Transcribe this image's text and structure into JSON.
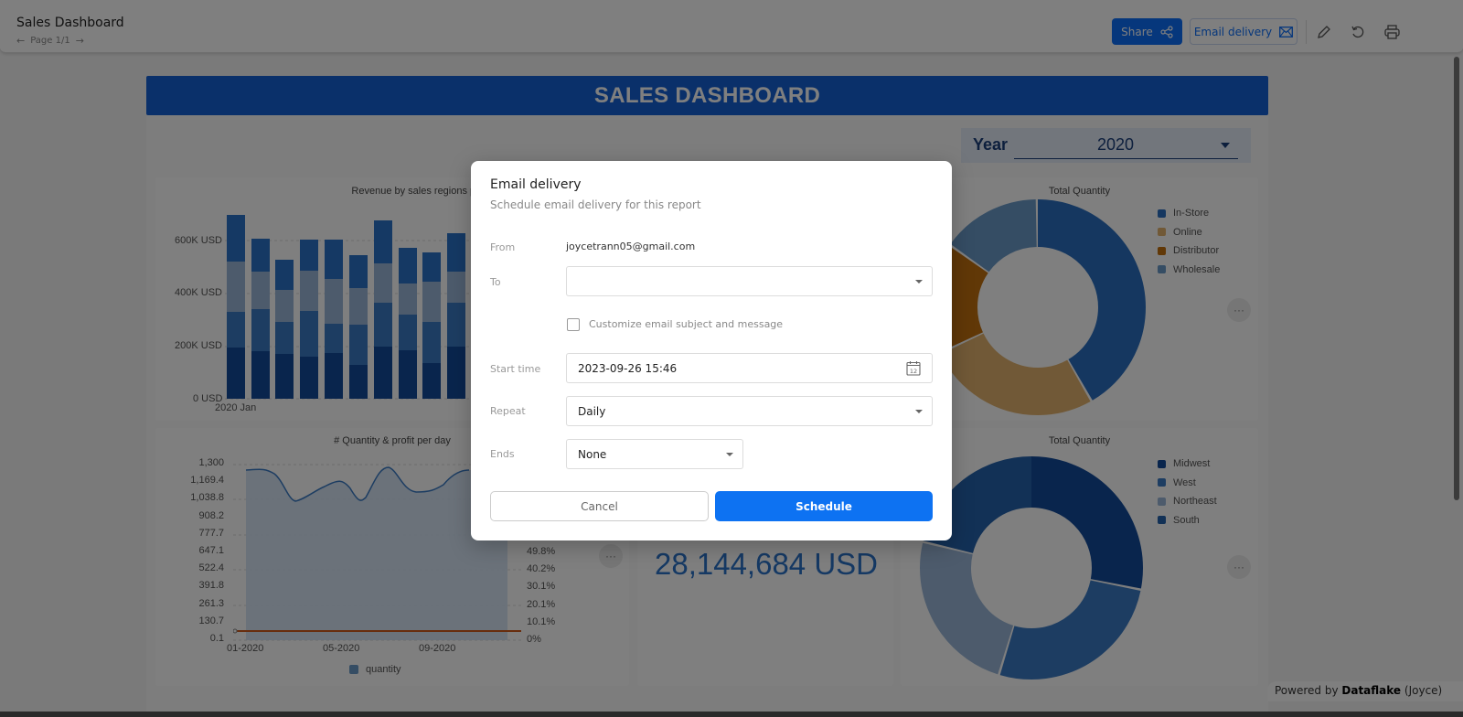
{
  "topbar": {
    "title": "Sales Dashboard",
    "page_indicator": "Page 1/1",
    "share_label": "Share",
    "email_delivery_label": "Email delivery",
    "icons": [
      "share-icon",
      "mail-icon",
      "pencil-icon",
      "undo-icon",
      "printer-icon"
    ]
  },
  "dashboard": {
    "banner_title": "SALES DASHBOARD",
    "year_filter": {
      "label": "Year",
      "value": "2020"
    },
    "revenue_chart": {
      "title": "Revenue by sales regions per month",
      "y_ticks": [
        "600K USD",
        "400K USD",
        "200K USD",
        "0 USD"
      ],
      "x_first_label": "2020 Jan"
    },
    "quantity_chart": {
      "title": "# Quantity & profit per day",
      "y_left_ticks": [
        "1,300",
        "1,169.4",
        "1,038.8",
        "908.2",
        "777.7",
        "647.1",
        "522.4",
        "391.8",
        "261.3",
        "130.7",
        "0.1"
      ],
      "y_right_ticks": [
        "49.8%",
        "40.2%",
        "30.1%",
        "20.1%",
        "10.1%",
        "0%"
      ],
      "x_ticks": [
        "01-2020",
        "05-2020",
        "09-2020"
      ],
      "legend": "quantity"
    },
    "kpi": {
      "value": "28,144,684 USD"
    },
    "channel_donut": {
      "title": "Total Quantity",
      "legend": [
        {
          "label": "In-Store",
          "color": "#2a6fc0"
        },
        {
          "label": "Online",
          "color": "#e3b36e"
        },
        {
          "label": "Distributor",
          "color": "#c2700f"
        },
        {
          "label": "Wholesale",
          "color": "#6b9ac9"
        }
      ]
    },
    "region_donut": {
      "title": "Total Quantity",
      "legend": [
        {
          "label": "Midwest",
          "color": "#124a9a"
        },
        {
          "label": "West",
          "color": "#3a7ac4"
        },
        {
          "label": "Northeast",
          "color": "#9ab7d9"
        },
        {
          "label": "South",
          "color": "#2563ad"
        }
      ]
    },
    "more_label": "···"
  },
  "dialog": {
    "title": "Email delivery",
    "subtitle": "Schedule email delivery for this report",
    "from_label": "From",
    "from_value": "joycetrann05@gmail.com",
    "to_label": "To",
    "to_value": "",
    "customize_label": "Customize email subject and message",
    "customize_checked": false,
    "start_time_label": "Start time",
    "start_time_value": "2023-09-26 15:46",
    "calendar_day": "12",
    "repeat_label": "Repeat",
    "repeat_value": "Daily",
    "ends_label": "Ends",
    "ends_value": "None",
    "cancel_label": "Cancel",
    "schedule_label": "Schedule"
  },
  "footer": {
    "powered_prefix": "Powered by",
    "brand": "Dataflake",
    "suffix": "(Joyce)"
  }
}
